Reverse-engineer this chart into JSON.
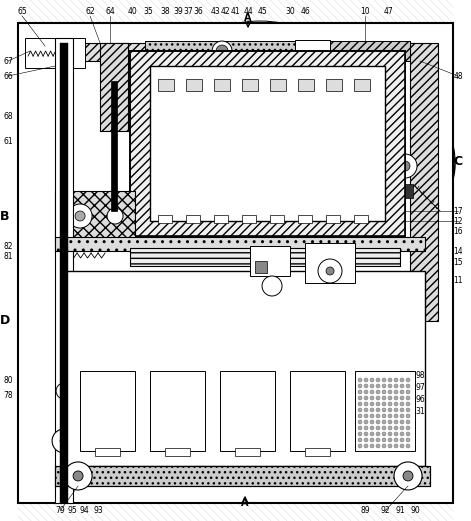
{
  "fig_width": 4.71,
  "fig_height": 5.21,
  "dpi": 100,
  "bg_color": "#ffffff",
  "hatch_color": "#888888",
  "line_color": "#000000",
  "labels": {
    "A_top": "A",
    "A_bottom": "A",
    "B": "B",
    "C": "C",
    "D": "D"
  },
  "part_numbers_top": [
    "65",
    "62",
    "64",
    "40",
    "35",
    "38",
    "39",
    "37",
    "36",
    "43",
    "42",
    "41",
    "44",
    "45",
    "30",
    "46",
    "10",
    "47"
  ],
  "part_numbers_right": [
    "48",
    "C",
    "17",
    "12",
    "16",
    "14",
    "15",
    "11"
  ],
  "part_numbers_left": [
    "67",
    "66",
    "68",
    "61",
    "B",
    "82",
    "81",
    "80",
    "78",
    "D"
  ],
  "part_numbers_bottom": [
    "79",
    "95",
    "94",
    "93",
    "A",
    "89",
    "92",
    "91",
    "90"
  ],
  "part_numbers_inner": [
    "98",
    "97",
    "96",
    "31"
  ]
}
